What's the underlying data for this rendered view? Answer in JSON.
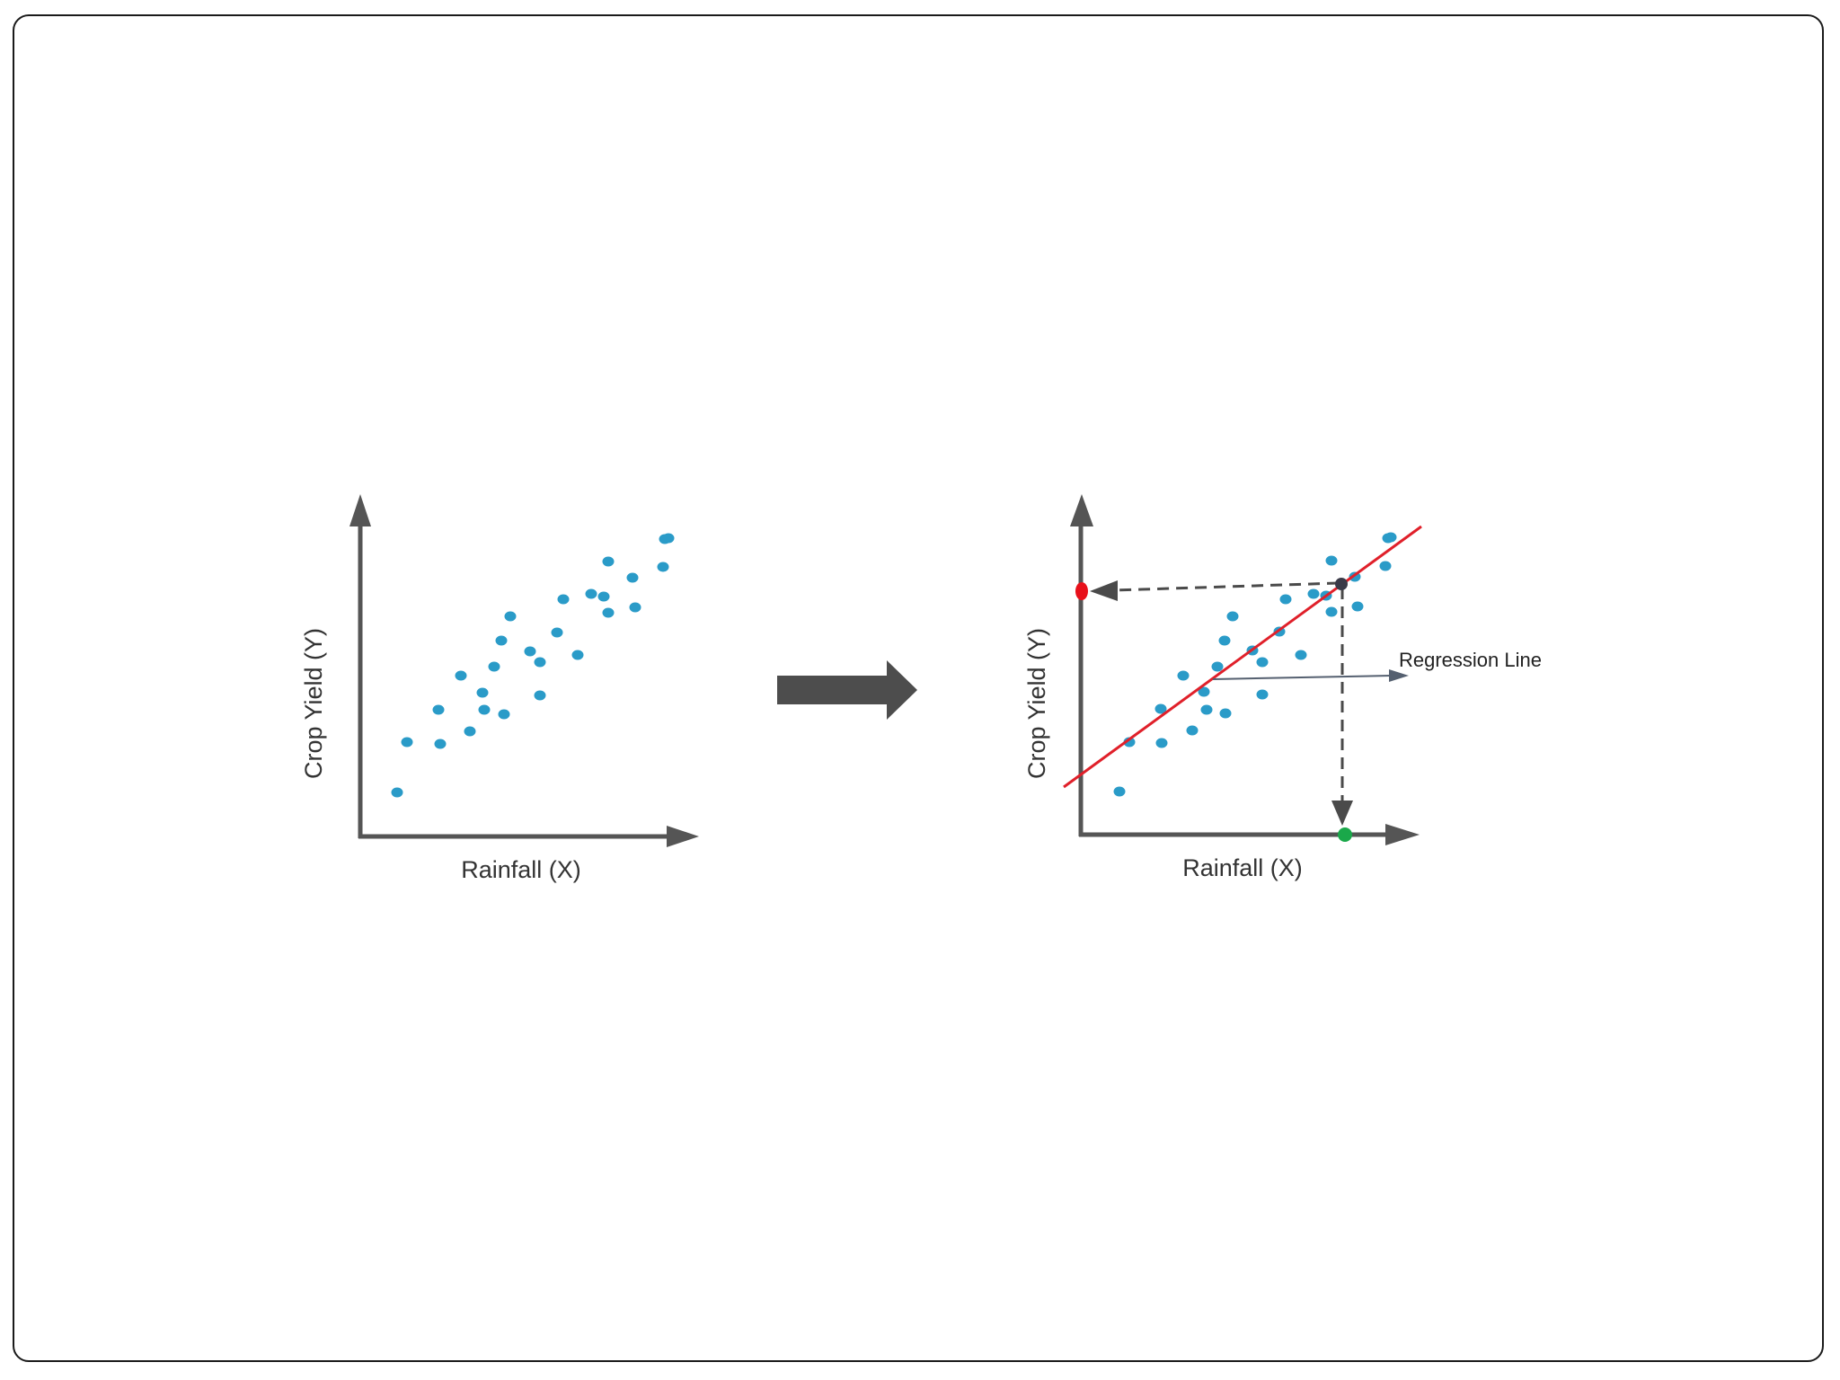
{
  "left_plot": {
    "x_label": "Rainfall (X)",
    "y_label": "Crop Yield (Y)",
    "points": [
      [
        442,
        882
      ],
      [
        453,
        826
      ],
      [
        490,
        828
      ],
      [
        488,
        790
      ],
      [
        513,
        752
      ],
      [
        523,
        814
      ],
      [
        537,
        771
      ],
      [
        539,
        790
      ],
      [
        550,
        742
      ],
      [
        558,
        713
      ],
      [
        561,
        795
      ],
      [
        568,
        686
      ],
      [
        590,
        725
      ],
      [
        601,
        737
      ],
      [
        601,
        774
      ],
      [
        620,
        704
      ],
      [
        627,
        667
      ],
      [
        643,
        729
      ],
      [
        658,
        661
      ],
      [
        672,
        664
      ],
      [
        677,
        625
      ],
      [
        677,
        682
      ],
      [
        704,
        643
      ],
      [
        707,
        676
      ],
      [
        738,
        631
      ],
      [
        740,
        600
      ],
      [
        744,
        599
      ]
    ]
  },
  "right_plot": {
    "x_label": "Rainfall (X)",
    "y_label": "Crop Yield (Y)",
    "annotation": "Regression Line",
    "points": [
      [
        1246,
        881
      ],
      [
        1257,
        826
      ],
      [
        1293,
        827
      ],
      [
        1292,
        789
      ],
      [
        1317,
        752
      ],
      [
        1327,
        813
      ],
      [
        1340,
        770
      ],
      [
        1343,
        790
      ],
      [
        1355,
        742
      ],
      [
        1363,
        713
      ],
      [
        1364,
        794
      ],
      [
        1372,
        686
      ],
      [
        1394,
        724
      ],
      [
        1405,
        737
      ],
      [
        1405,
        773
      ],
      [
        1424,
        703
      ],
      [
        1431,
        667
      ],
      [
        1448,
        729
      ],
      [
        1462,
        661
      ],
      [
        1476,
        663
      ],
      [
        1482,
        624
      ],
      [
        1482,
        681
      ],
      [
        1508,
        642
      ],
      [
        1511,
        675
      ],
      [
        1542,
        630
      ],
      [
        1545,
        599
      ],
      [
        1548,
        598
      ]
    ],
    "colors": {
      "regression_line": "#e0202a",
      "y_prediction_marker": "#e8101a",
      "x_input_marker": "#1aa84a",
      "intersection_marker": "#3a3a48"
    }
  },
  "colors": {
    "point": "#2a9bc8",
    "axis": "#555555",
    "transition_arrow": "#4d4d4d"
  }
}
